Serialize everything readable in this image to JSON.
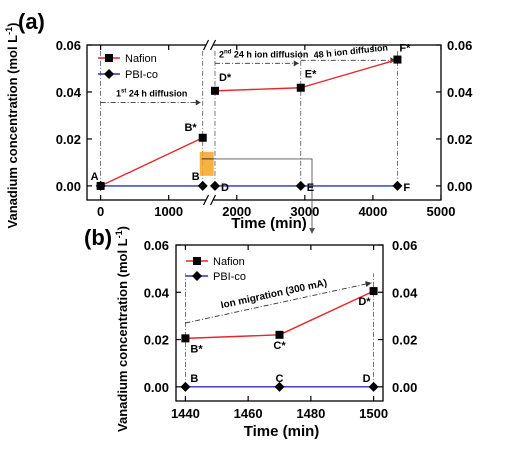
{
  "chart_data": [
    {
      "panel": "(a)",
      "type": "line",
      "xlabel": "Time (min)",
      "ylabel": "Vanadium concentration (mol L",
      "ylabel_sup": "-1",
      "ylabel_close": ")",
      "xlim": [
        -200,
        5000
      ],
      "ylim": [
        -0.006,
        0.06
      ],
      "xticks": [
        0,
        1000,
        2000,
        3000,
        4000,
        5000
      ],
      "yticks": [
        0.0,
        0.02,
        0.04,
        0.06
      ],
      "ytick_labels": [
        "0.00",
        "0.02",
        "0.04",
        "0.06"
      ],
      "axis_break": 1600,
      "legend": "top-left",
      "grid": false,
      "series": [
        {
          "name": "Nafion",
          "marker": "square",
          "color": "#e8262a",
          "x": [
            0,
            1500,
            1680,
            2940,
            4360
          ],
          "y": [
            0.0,
            0.0205,
            0.0405,
            0.0418,
            0.0538
          ]
        },
        {
          "name": "PBI-co",
          "marker": "diamond",
          "color": "#2b2fc7",
          "x": [
            0,
            1500,
            1680,
            2940,
            4360
          ],
          "y": [
            0.0,
            0.0,
            0.0,
            0.0,
            0.0
          ]
        }
      ],
      "point_labels": [
        {
          "text": "A",
          "x": 0,
          "y": 0.0
        },
        {
          "text": "B*",
          "x": 1500,
          "y": 0.0205
        },
        {
          "text": "B",
          "x": 1500,
          "y": 0.0
        },
        {
          "text": "D*",
          "x": 1680,
          "y": 0.0405
        },
        {
          "text": "D",
          "x": 1680,
          "y": 0.0
        },
        {
          "text": "E*",
          "x": 2940,
          "y": 0.0418
        },
        {
          "text": "E",
          "x": 2940,
          "y": 0.0
        },
        {
          "text": "F*",
          "x": 4360,
          "y": 0.0538
        },
        {
          "text": "F",
          "x": 4360,
          "y": 0.0
        }
      ],
      "annotations": [
        {
          "text": "1",
          "sup": "st",
          "rest": " 24 h diffusion"
        },
        {
          "text": "2",
          "sup": "nd",
          "rest": " 24 h ion diffusion"
        },
        {
          "text": "48 h ion diffusion",
          "sup": "",
          "rest": ""
        }
      ]
    },
    {
      "panel": "(b)",
      "type": "line",
      "xlabel": "Time (min)",
      "ylabel": "Vanadium concentration (mol L",
      "ylabel_sup": "-1",
      "ylabel_close": ")",
      "xlim": [
        1437,
        1503
      ],
      "ylim": [
        -0.006,
        0.06
      ],
      "xticks": [
        1440,
        1460,
        1480,
        1500
      ],
      "yticks": [
        0.0,
        0.02,
        0.04,
        0.06
      ],
      "ytick_labels": [
        "0.00",
        "0.02",
        "0.04",
        "0.06"
      ],
      "legend": "top-left",
      "grid": false,
      "series": [
        {
          "name": "Nafion",
          "marker": "square",
          "color": "#e8262a",
          "x": [
            1440,
            1470,
            1500
          ],
          "y": [
            0.0205,
            0.022,
            0.0405
          ]
        },
        {
          "name": "PBI-co",
          "marker": "diamond",
          "color": "#2b2fc7",
          "x": [
            1440,
            1470,
            1500
          ],
          "y": [
            0.0,
            0.0,
            0.0
          ]
        }
      ],
      "point_labels": [
        {
          "text": "B*",
          "x": 1440,
          "y": 0.0205
        },
        {
          "text": "B",
          "x": 1440,
          "y": 0.0
        },
        {
          "text": "C*",
          "x": 1470,
          "y": 0.022
        },
        {
          "text": "C",
          "x": 1470,
          "y": 0.0
        },
        {
          "text": "D*",
          "x": 1500,
          "y": 0.0405
        },
        {
          "text": "D",
          "x": 1500,
          "y": 0.0
        }
      ],
      "annotations": [
        {
          "text": "Ion migration (300 mA)",
          "sup": "",
          "rest": ""
        }
      ]
    }
  ]
}
